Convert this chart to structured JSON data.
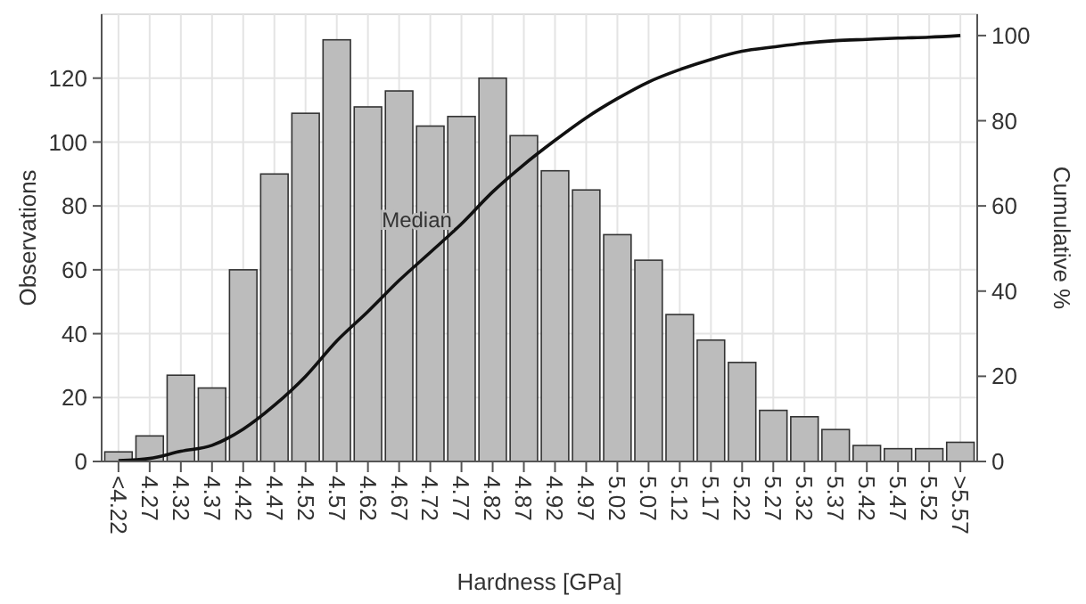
{
  "chart_data": {
    "type": "bar",
    "xlabel": "Hardness [GPa]",
    "ylabel": "Observations",
    "y2label": "Cumulative %",
    "categories": [
      "<4.22",
      "4.27",
      "4.32",
      "4.37",
      "4.42",
      "4.47",
      "4.52",
      "4.57",
      "4.62",
      "4.67",
      "4.72",
      "4.77",
      "4.82",
      "4.87",
      "4.92",
      "4.97",
      "5.02",
      "5.07",
      "5.12",
      "5.17",
      "5.22",
      "5.27",
      "5.32",
      "5.37",
      "5.42",
      "5.47",
      "5.52",
      ">5.57"
    ],
    "series": [
      {
        "color": "#bcbcbc",
        "values": [
          3,
          8,
          27,
          23,
          60,
          90,
          109,
          132,
          111,
          116,
          105,
          108,
          120,
          102,
          91,
          85,
          71,
          63,
          46,
          38,
          31,
          16,
          14,
          10,
          5,
          4,
          4,
          6
        ]
      },
      {
        "type": "line",
        "axis": "y2",
        "color": "#111111",
        "values": [
          0.2,
          0.7,
          2.4,
          3.8,
          7.6,
          13.2,
          20,
          28.3,
          35.2,
          42.5,
          49.1,
          55.8,
          63.3,
          69.7,
          75.4,
          80.7,
          85.2,
          89.1,
          92,
          94.4,
          96.3,
          97.3,
          98.2,
          98.8,
          99.1,
          99.4,
          99.6,
          100
        ]
      }
    ],
    "ylim": [
      0,
      140
    ],
    "yticks": [
      0,
      20,
      40,
      60,
      80,
      100,
      120
    ],
    "y2lim": [
      0,
      105
    ],
    "y2ticks": [
      0,
      20,
      40,
      60,
      80,
      100
    ],
    "grid": true,
    "annotations": [
      "Median"
    ]
  }
}
